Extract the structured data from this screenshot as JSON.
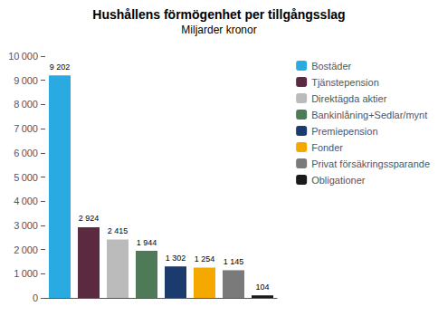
{
  "chart_data": {
    "type": "bar",
    "title": "Hushållens förmögenhet per tillgångsslag",
    "subtitle": "Miljarder kronor",
    "categories": [
      "Bostäder",
      "Tjänstepension",
      "Direktägda aktier",
      "Bankinlåning+Sedlar/mynt",
      "Premiepension",
      "Fonder",
      "Privat försäkringssparande",
      "Obligationer"
    ],
    "values": [
      9202,
      2924,
      2415,
      1944,
      1302,
      1254,
      1145,
      104
    ],
    "value_labels": [
      "9 202",
      "2 924",
      "2 415",
      "1 944",
      "1 302",
      "1 254",
      "1 145",
      "104"
    ],
    "colors": [
      "#29ABE2",
      "#5C2A40",
      "#BBBBBB",
      "#4F7A57",
      "#1B3A6E",
      "#F5A800",
      "#7A7A7A",
      "#1A1A1A"
    ],
    "ylim": [
      0,
      10000
    ],
    "yticks": [
      0,
      {
        "value": 1000,
        "label": "1 000"
      },
      {
        "value": 2000,
        "label": "2 000"
      },
      {
        "value": 3000,
        "label": "3 000"
      },
      {
        "value": 4000,
        "label": "4 000"
      },
      {
        "value": 5000,
        "label": "5 000"
      },
      {
        "value": 6000,
        "label": "6 000"
      },
      {
        "value": 7000,
        "label": "7 000"
      },
      {
        "value": 8000,
        "label": "8 000"
      },
      {
        "value": 9000,
        "label": "9 000"
      },
      {
        "value": 10000,
        "label": "10 000"
      }
    ],
    "grid": false,
    "legend": "upper right",
    "data_labels": true,
    "tick_labels": "y"
  }
}
